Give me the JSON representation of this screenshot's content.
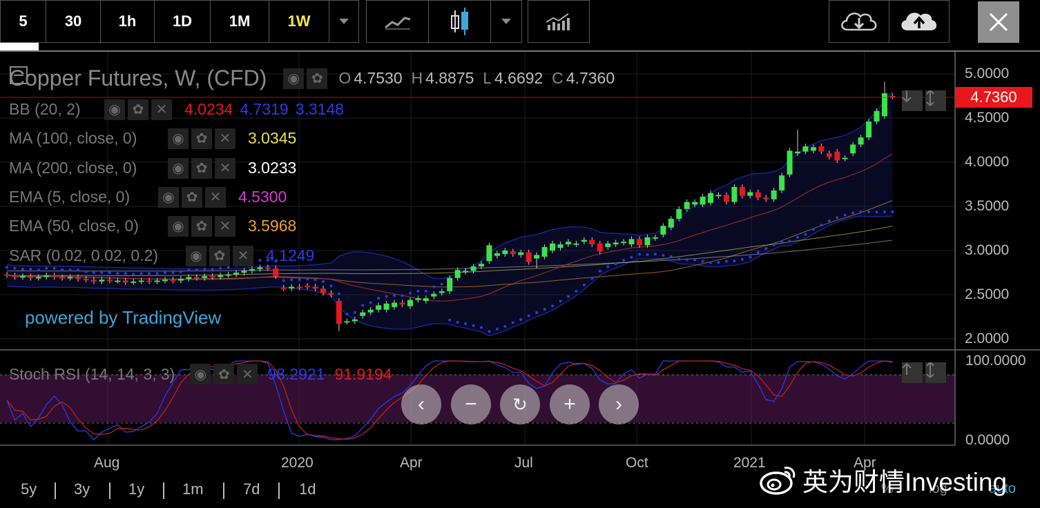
{
  "toolbar": {
    "intervals": [
      "5",
      "30",
      "1h",
      "1D",
      "1M",
      "1W"
    ],
    "active_interval": "1W",
    "icons": [
      "chevron-down-icon",
      "line-chart-icon",
      "candlestick-icon",
      "chevron-down-icon",
      "indicators-icon",
      "cloud-download-icon",
      "cloud-upload-icon",
      "close-icon"
    ]
  },
  "legend": {
    "symbol": "Copper Futures, W, (CFD)",
    "ohlc": {
      "o_label": "O",
      "o": "4.7530",
      "h_label": "H",
      "h": "4.8875",
      "l_label": "L",
      "l": "4.6692",
      "c_label": "C",
      "c": "4.7360"
    },
    "indicators": [
      {
        "name": "BB (20, 2)",
        "values": [
          "4.0234",
          "4.7319",
          "3.3148"
        ],
        "colors": [
          "#e8171b",
          "#2a3be8",
          "#2a3be8"
        ]
      },
      {
        "name": "MA (100, close, 0)",
        "values": [
          "3.0345"
        ],
        "colors": [
          "#e8e24b"
        ]
      },
      {
        "name": "MA (200, close, 0)",
        "values": [
          "3.0233"
        ],
        "colors": [
          "#ffffff"
        ]
      },
      {
        "name": "EMA (5, close, 0)",
        "values": [
          "4.5300"
        ],
        "colors": [
          "#d63ad6"
        ]
      },
      {
        "name": "EMA (50, close, 0)",
        "values": [
          "3.5968"
        ],
        "colors": [
          "#f0a030"
        ]
      },
      {
        "name": "SAR (0.02, 0.02, 0.2)",
        "values": [
          "4.1249"
        ],
        "colors": [
          "#2a3be8"
        ]
      }
    ]
  },
  "price_axis": [
    "5.0000",
    "4.5000",
    "4.0000",
    "3.5000",
    "3.0000",
    "2.5000",
    "2.0000"
  ],
  "last_price": "4.7360",
  "powered_by": "powered by TradingView",
  "stoch": {
    "name": "Stoch RSI (14, 14, 3, 3)",
    "k": "98.2921",
    "d": "91.9194",
    "axis": [
      "100.0000",
      "0.0000"
    ]
  },
  "x_axis": [
    "Aug",
    "2020",
    "Apr",
    "Jul",
    "Oct",
    "2021",
    "Apr"
  ],
  "ranges": [
    "5y",
    "3y",
    "1y",
    "1m",
    "7d",
    "1d"
  ],
  "corner": {
    "percent": "%",
    "log": "log",
    "auto": "auto"
  },
  "watermark": "英为财情Investing",
  "colors": {
    "up": "#3be34a",
    "down": "#e8171b",
    "bb": "#2a3be8",
    "ma100": "#e8e24b",
    "ema50": "#f0a030",
    "ema5_line": "#b03030"
  },
  "chart_data": {
    "type": "candlestick",
    "title": "Copper Futures, W, (CFD)",
    "y_range": [
      1.9,
      5.1
    ],
    "candles": [
      {
        "o": 2.73,
        "c": 2.72
      },
      {
        "o": 2.72,
        "c": 2.7
      },
      {
        "o": 2.7,
        "c": 2.71
      },
      {
        "o": 2.71,
        "c": 2.69
      },
      {
        "o": 2.69,
        "c": 2.7
      },
      {
        "o": 2.7,
        "c": 2.72
      },
      {
        "o": 2.72,
        "c": 2.7
      },
      {
        "o": 2.7,
        "c": 2.69
      },
      {
        "o": 2.69,
        "c": 2.7
      },
      {
        "o": 2.7,
        "c": 2.68
      },
      {
        "o": 2.68,
        "c": 2.67
      },
      {
        "o": 2.67,
        "c": 2.65
      },
      {
        "o": 2.65,
        "c": 2.67
      },
      {
        "o": 2.67,
        "c": 2.66
      },
      {
        "o": 2.66,
        "c": 2.66
      },
      {
        "o": 2.66,
        "c": 2.64
      },
      {
        "o": 2.64,
        "c": 2.65
      },
      {
        "o": 2.65,
        "c": 2.66
      },
      {
        "o": 2.66,
        "c": 2.65
      },
      {
        "o": 2.65,
        "c": 2.66
      },
      {
        "o": 2.66,
        "c": 2.67
      },
      {
        "o": 2.67,
        "c": 2.66
      },
      {
        "o": 2.66,
        "c": 2.68
      },
      {
        "o": 2.68,
        "c": 2.7
      },
      {
        "o": 2.7,
        "c": 2.69
      },
      {
        "o": 2.69,
        "c": 2.71
      },
      {
        "o": 2.71,
        "c": 2.7
      },
      {
        "o": 2.7,
        "c": 2.72
      },
      {
        "o": 2.72,
        "c": 2.73
      },
      {
        "o": 2.73,
        "c": 2.75
      },
      {
        "o": 2.75,
        "c": 2.77
      },
      {
        "o": 2.77,
        "c": 2.79
      },
      {
        "o": 2.79,
        "c": 2.81
      },
      {
        "o": 2.81,
        "c": 2.8
      },
      {
        "o": 2.8,
        "c": 2.71
      },
      {
        "o": 2.58,
        "c": 2.57
      },
      {
        "o": 2.57,
        "c": 2.59
      },
      {
        "o": 2.59,
        "c": 2.58
      },
      {
        "o": 2.6,
        "c": 2.59
      },
      {
        "o": 2.59,
        "c": 2.57
      },
      {
        "o": 2.57,
        "c": 2.52
      },
      {
        "o": 2.52,
        "c": 2.5
      },
      {
        "o": 2.43,
        "c": 2.17
      },
      {
        "o": 2.19,
        "c": 2.2
      },
      {
        "o": 2.2,
        "c": 2.22
      },
      {
        "o": 2.26,
        "c": 2.3
      },
      {
        "o": 2.3,
        "c": 2.33
      },
      {
        "o": 2.33,
        "c": 2.38
      },
      {
        "o": 2.33,
        "c": 2.4
      },
      {
        "o": 2.36,
        "c": 2.41
      },
      {
        "o": 2.41,
        "c": 2.39
      },
      {
        "o": 2.37,
        "c": 2.44
      },
      {
        "o": 2.44,
        "c": 2.46
      },
      {
        "o": 2.43,
        "c": 2.46
      },
      {
        "o": 2.48,
        "c": 2.51
      },
      {
        "o": 2.52,
        "c": 2.54
      },
      {
        "o": 2.54,
        "c": 2.69
      },
      {
        "o": 2.69,
        "c": 2.78
      },
      {
        "o": 2.76,
        "c": 2.77
      },
      {
        "o": 2.77,
        "c": 2.82
      },
      {
        "o": 2.82,
        "c": 2.85
      },
      {
        "o": 2.88,
        "c": 3.06
      },
      {
        "o": 2.94,
        "c": 2.97
      },
      {
        "o": 2.96,
        "c": 3.0
      },
      {
        "o": 2.99,
        "c": 2.96
      },
      {
        "o": 2.95,
        "c": 2.98
      },
      {
        "o": 2.98,
        "c": 2.87
      },
      {
        "o": 2.91,
        "c": 2.95
      },
      {
        "o": 2.93,
        "c": 3.04
      },
      {
        "o": 3.0,
        "c": 3.08
      },
      {
        "o": 3.03,
        "c": 3.07
      },
      {
        "o": 3.07,
        "c": 3.1
      },
      {
        "o": 3.07,
        "c": 3.08
      },
      {
        "o": 3.1,
        "c": 3.12
      },
      {
        "o": 3.12,
        "c": 3.07
      },
      {
        "o": 3.08,
        "c": 2.99
      },
      {
        "o": 3.04,
        "c": 3.08
      },
      {
        "o": 3.07,
        "c": 3.09
      },
      {
        "o": 3.09,
        "c": 3.1
      },
      {
        "o": 3.07,
        "c": 3.13
      },
      {
        "o": 3.13,
        "c": 3.06
      },
      {
        "o": 3.06,
        "c": 3.15
      },
      {
        "o": 3.14,
        "c": 3.15
      },
      {
        "o": 3.18,
        "c": 3.28
      },
      {
        "o": 3.26,
        "c": 3.36
      },
      {
        "o": 3.36,
        "c": 3.47
      },
      {
        "o": 3.47,
        "c": 3.55
      },
      {
        "o": 3.52,
        "c": 3.55
      },
      {
        "o": 3.52,
        "c": 3.61
      },
      {
        "o": 3.54,
        "c": 3.65
      },
      {
        "o": 3.62,
        "c": 3.63
      },
      {
        "o": 3.63,
        "c": 3.55
      },
      {
        "o": 3.55,
        "c": 3.72
      },
      {
        "o": 3.72,
        "c": 3.62
      },
      {
        "o": 3.62,
        "c": 3.66
      },
      {
        "o": 3.66,
        "c": 3.6
      },
      {
        "o": 3.6,
        "c": 3.58
      },
      {
        "o": 3.58,
        "c": 3.68
      },
      {
        "o": 3.68,
        "c": 3.85
      },
      {
        "o": 3.86,
        "c": 4.13
      },
      {
        "o": 4.1,
        "c": 4.12
      },
      {
        "o": 4.12,
        "c": 4.18
      },
      {
        "o": 4.13,
        "c": 4.17
      },
      {
        "o": 4.18,
        "c": 4.12
      },
      {
        "o": 4.1,
        "c": 4.06
      },
      {
        "o": 4.12,
        "c": 4.02
      },
      {
        "o": 4.04,
        "c": 4.05
      },
      {
        "o": 4.1,
        "c": 4.2
      },
      {
        "o": 4.2,
        "c": 4.28
      },
      {
        "o": 4.28,
        "c": 4.46
      },
      {
        "o": 4.46,
        "c": 4.58
      },
      {
        "o": 4.52,
        "c": 4.78
      },
      {
        "o": 4.75,
        "c": 4.74
      }
    ],
    "stoch_range": [
      0,
      100
    ]
  }
}
